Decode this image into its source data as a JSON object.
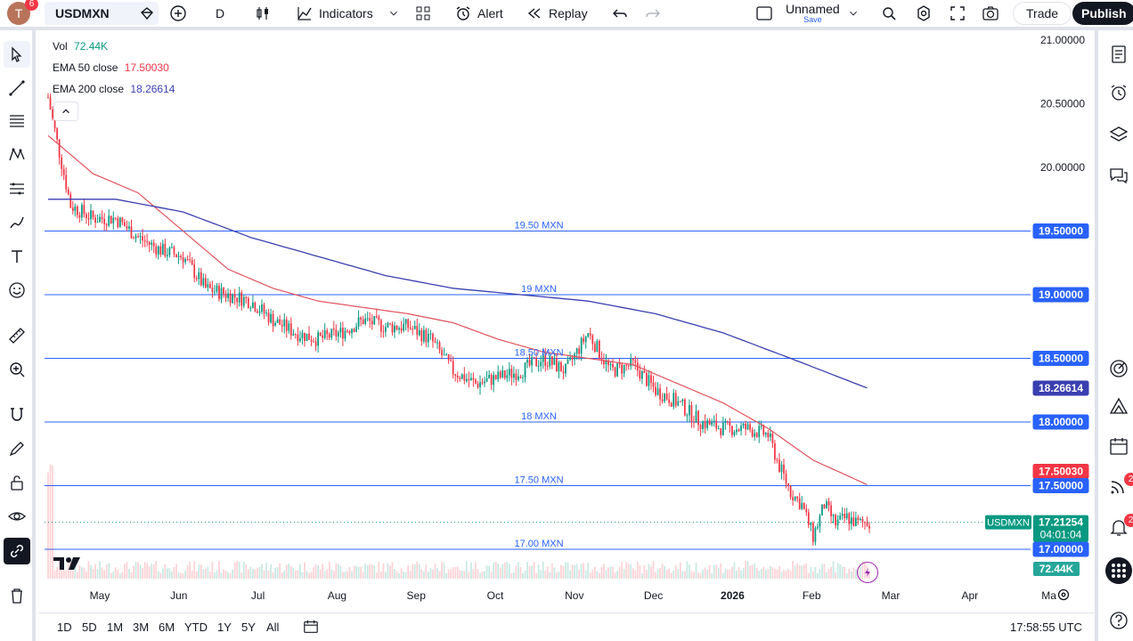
{
  "header": {
    "notifications_count": "6",
    "symbol": "USDMXN",
    "interval": "D",
    "indicators_label": "Indicators",
    "alert_label": "Alert",
    "replay_label": "Replay",
    "layout_name": "Unnamed",
    "layout_save": "Save",
    "trade_label": "Trade",
    "publish_label": "Publish"
  },
  "legend": {
    "vol_label": "Vol",
    "vol_value": "72.44K",
    "ema50_label": "EMA 50 close",
    "ema50_value": "17.50030",
    "ema200_label": "EMA 200 close",
    "ema200_value": "18.26614"
  },
  "right_badges": {
    "feed_count": "2",
    "alerts_count": "2"
  },
  "bottom": {
    "ranges": [
      "1D",
      "5D",
      "1M",
      "3M",
      "6M",
      "YTD",
      "1Y",
      "5Y",
      "All"
    ],
    "clock": "17:58:55 UTC"
  },
  "colors": {
    "up": "#089981",
    "down": "#f23645",
    "ema50": "#e0525d",
    "ema200": "#3a3fb0",
    "hline": "#2962ff"
  },
  "chart_data": {
    "type": "candlestick",
    "symbol": "USDMXN",
    "ylim": [
      16.85,
      21.05
    ],
    "price_ticks": [
      "21.00000",
      "20.50000",
      "20.00000",
      "19.50000",
      "19.00000",
      "18.50000",
      "18.00000",
      "17.50000",
      "17.00000"
    ],
    "price_tick_values": [
      21.0,
      20.5,
      20.0,
      19.5,
      19.0,
      18.5,
      18.0,
      17.5,
      17.0
    ],
    "time_labels": [
      "May",
      "Jun",
      "Jul",
      "Aug",
      "Sep",
      "Oct",
      "Nov",
      "Dec",
      "2026",
      "Feb",
      "Mar",
      "Apr",
      "Ma"
    ],
    "horizontal_lines": [
      {
        "price": 19.5,
        "label": "19.50 MXN"
      },
      {
        "price": 19.0,
        "label": "19 MXN"
      },
      {
        "price": 18.5,
        "label": "18.50 MXN"
      },
      {
        "price": 18.0,
        "label": "18 MXN"
      },
      {
        "price": 17.5,
        "label": "17.50 MXN"
      },
      {
        "price": 17.0,
        "label": "17.00 MXN"
      }
    ],
    "price_badges": [
      {
        "text": "19.50000",
        "price": 19.5,
        "kind": "line"
      },
      {
        "text": "19.00000",
        "price": 19.0,
        "kind": "line"
      },
      {
        "text": "18.50000",
        "price": 18.5,
        "kind": "line"
      },
      {
        "text": "18.26614",
        "price": 18.26614,
        "kind": "ema200"
      },
      {
        "text": "18.00000",
        "price": 18.0,
        "kind": "line"
      },
      {
        "text": "17.50030",
        "price": 17.5003,
        "kind": "ema50"
      },
      {
        "text": "17.50000",
        "price": 17.5,
        "kind": "line"
      },
      {
        "text": "17.00000",
        "price": 17.0,
        "kind": "line"
      }
    ],
    "last_price": {
      "value": 17.21254,
      "text": "17.21254",
      "countdown": "04:01:04",
      "symbol": "USDMXN"
    },
    "volume_badge": "72.44K",
    "close_anchors": [
      [
        0,
        20.55
      ],
      [
        4,
        20.2
      ],
      [
        10,
        19.7
      ],
      [
        20,
        19.6
      ],
      [
        30,
        19.6
      ],
      [
        40,
        19.45
      ],
      [
        50,
        19.35
      ],
      [
        60,
        19.3
      ],
      [
        70,
        19.05
      ],
      [
        80,
        19.0
      ],
      [
        90,
        18.95
      ],
      [
        100,
        18.8
      ],
      [
        110,
        18.7
      ],
      [
        120,
        18.65
      ],
      [
        130,
        18.7
      ],
      [
        140,
        18.8
      ],
      [
        150,
        18.75
      ],
      [
        160,
        18.75
      ],
      [
        170,
        18.65
      ],
      [
        180,
        18.4
      ],
      [
        190,
        18.3
      ],
      [
        200,
        18.35
      ],
      [
        210,
        18.4
      ],
      [
        220,
        18.5
      ],
      [
        230,
        18.4
      ],
      [
        240,
        18.7
      ],
      [
        245,
        18.55
      ],
      [
        250,
        18.4
      ],
      [
        260,
        18.45
      ],
      [
        270,
        18.25
      ],
      [
        280,
        18.15
      ],
      [
        290,
        18.0
      ],
      [
        300,
        17.95
      ],
      [
        310,
        17.95
      ],
      [
        320,
        17.9
      ],
      [
        325,
        17.65
      ],
      [
        330,
        17.45
      ],
      [
        335,
        17.35
      ],
      [
        340,
        17.1
      ],
      [
        345,
        17.35
      ],
      [
        350,
        17.2
      ],
      [
        355,
        17.25
      ],
      [
        360,
        17.2
      ],
      [
        365,
        17.22
      ]
    ],
    "ema50_anchors": [
      [
        0,
        20.25
      ],
      [
        20,
        19.95
      ],
      [
        40,
        19.8
      ],
      [
        60,
        19.5
      ],
      [
        80,
        19.2
      ],
      [
        100,
        19.05
      ],
      [
        120,
        18.95
      ],
      [
        140,
        18.9
      ],
      [
        160,
        18.85
      ],
      [
        180,
        18.78
      ],
      [
        200,
        18.65
      ],
      [
        220,
        18.55
      ],
      [
        240,
        18.5
      ],
      [
        260,
        18.45
      ],
      [
        280,
        18.3
      ],
      [
        300,
        18.15
      ],
      [
        320,
        17.95
      ],
      [
        340,
        17.7
      ],
      [
        365,
        17.5
      ]
    ],
    "ema200_anchors": [
      [
        0,
        19.75
      ],
      [
        30,
        19.75
      ],
      [
        60,
        19.65
      ],
      [
        90,
        19.45
      ],
      [
        120,
        19.3
      ],
      [
        150,
        19.15
      ],
      [
        180,
        19.05
      ],
      [
        210,
        19.0
      ],
      [
        240,
        18.95
      ],
      [
        270,
        18.85
      ],
      [
        300,
        18.7
      ],
      [
        330,
        18.5
      ],
      [
        365,
        18.26
      ]
    ]
  }
}
